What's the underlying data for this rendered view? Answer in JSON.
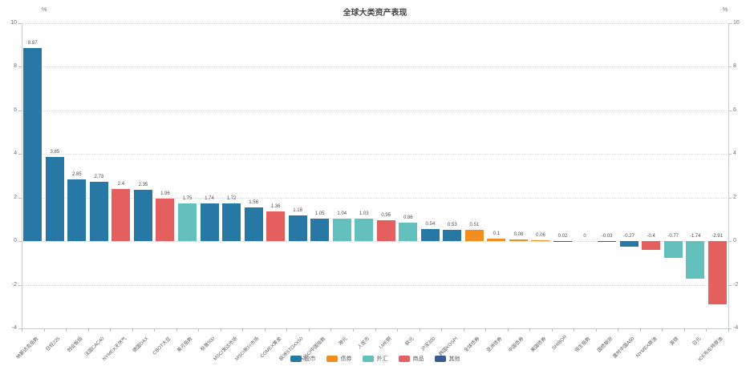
{
  "title": "全球大类资产表现",
  "axis": {
    "unit": "%",
    "yticks": [
      10,
      8,
      6,
      4,
      2,
      0,
      -2,
      -4
    ]
  },
  "legend": [
    {
      "label": "股市",
      "color": "#2778a5"
    },
    {
      "label": "债券",
      "color": "#f28d1f"
    },
    {
      "label": "外汇",
      "color": "#64c0bc"
    },
    {
      "label": "商品",
      "color": "#e4605f"
    },
    {
      "label": "其他",
      "color": "#3b5a8f"
    }
  ],
  "chart_data": {
    "type": "bar",
    "title": "全球大类资产表现",
    "xlabel": "",
    "ylabel": "%",
    "ylim": [
      -4,
      10
    ],
    "ytick_step": 2,
    "grid": "dotted horizontal gridlines",
    "legend_position": "bottom center",
    "categories": [
      "纳斯达克指数",
      "日经225",
      "创业板指",
      "法国CAC40",
      "NYMEX天然气",
      "德国DAX",
      "CBOT大豆",
      "美元指数",
      "标普500",
      "MSCI发达市场",
      "MSCI新兴市场",
      "COMEX黄金",
      "欧洲STOXX50",
      "MSCI中国指数",
      "港元",
      "人民币",
      "LME铜",
      "欧元",
      "沪深300",
      "韩国KOSPI",
      "全球债券",
      "亚洲债券",
      "中国债券",
      "美国债券",
      "SHIBOR",
      "恒生指数",
      "国债期货",
      "富时中国A50",
      "NYMEX原油",
      "英镑",
      "日元",
      "ICE布伦特原油"
    ],
    "values": [
      8.87,
      3.85,
      2.85,
      2.73,
      2.4,
      2.35,
      1.96,
      1.75,
      1.74,
      1.72,
      1.56,
      1.36,
      1.18,
      1.05,
      1.04,
      1.03,
      0.95,
      0.86,
      0.54,
      0.53,
      0.51,
      0.1,
      0.08,
      0.06,
      0.02,
      0,
      -0.03,
      -0.27,
      -0.4,
      -0.77,
      -1.74,
      -2.91
    ],
    "bar_categories": [
      "股市",
      "股市",
      "股市",
      "股市",
      "商品",
      "股市",
      "商品",
      "外汇",
      "股市",
      "股市",
      "股市",
      "商品",
      "股市",
      "股市",
      "外汇",
      "外汇",
      "商品",
      "外汇",
      "股市",
      "股市",
      "债券",
      "债券",
      "债券",
      "债券",
      "其他",
      "股市",
      "其他",
      "股市",
      "商品",
      "外汇",
      "外汇",
      "商品"
    ],
    "category_colors": {
      "股市": "#2778a5",
      "债券": "#f28d1f",
      "外汇": "#64c0bc",
      "商品": "#e4605f",
      "其他": "#3b5a8f"
    }
  }
}
